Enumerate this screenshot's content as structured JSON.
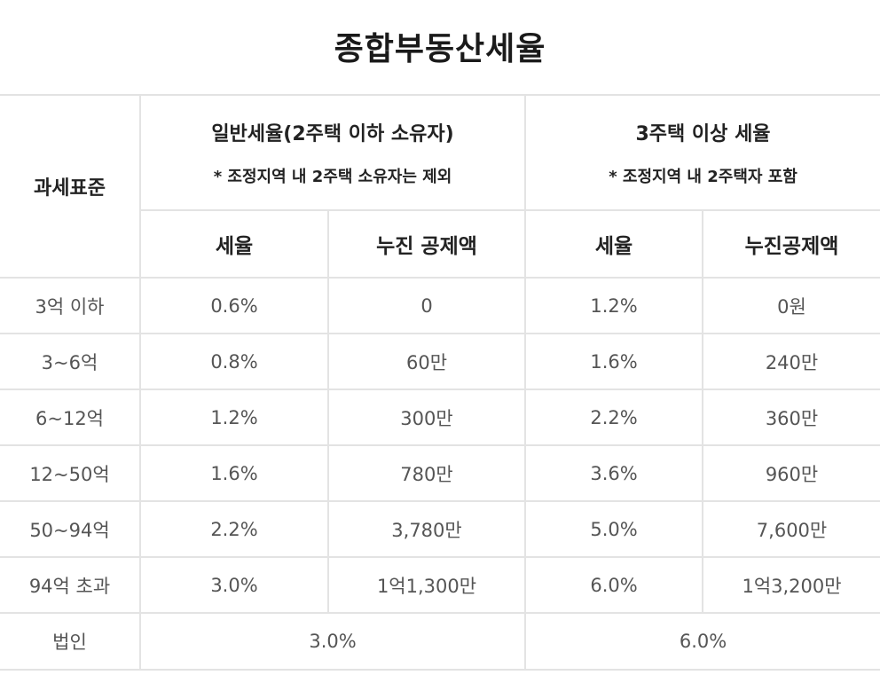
{
  "title": "종합부동산세율",
  "headers": {
    "base": "과세표준",
    "general": {
      "line1": "일반세율(2주택 이하 소유자)",
      "line2": "* 조정지역 내 2주택 소유자는 제외",
      "rate": "세율",
      "deduction": "누진 공제액"
    },
    "multi": {
      "line1": "3주택 이상 세율",
      "line2": "* 조정지역 내 2주택자 포함",
      "rate": "세율",
      "deduction": "누진공제액"
    }
  },
  "rows": [
    {
      "base": "3억 이하",
      "g_rate": "0.6%",
      "g_ded": "0",
      "m_rate": "1.2%",
      "m_ded": "0원"
    },
    {
      "base": "3~6억",
      "g_rate": "0.8%",
      "g_ded": "60만",
      "m_rate": "1.6%",
      "m_ded": "240만"
    },
    {
      "base": "6~12억",
      "g_rate": "1.2%",
      "g_ded": "300만",
      "m_rate": "2.2%",
      "m_ded": "360만"
    },
    {
      "base": "12~50억",
      "g_rate": "1.6%",
      "g_ded": "780만",
      "m_rate": "3.6%",
      "m_ded": "960만"
    },
    {
      "base": "50~94억",
      "g_rate": "2.2%",
      "g_ded": "3,780만",
      "m_rate": "5.0%",
      "m_ded": "7,600만"
    },
    {
      "base": "94억 초과",
      "g_rate": "3.0%",
      "g_ded": "1억1,300만",
      "m_rate": "6.0%",
      "m_ded": "1억3,200만"
    }
  ],
  "corporate": {
    "base": "법인",
    "general": "3.0%",
    "multi": "6.0%"
  },
  "colors": {
    "border": "#e3e3e3",
    "header_text": "#222222",
    "body_text": "#555555"
  }
}
